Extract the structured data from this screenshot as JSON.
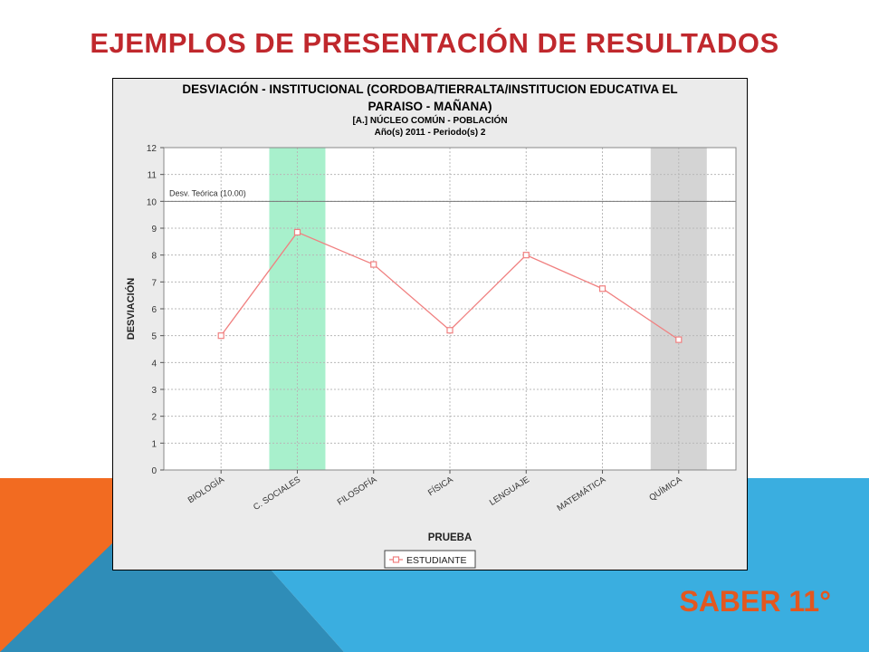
{
  "slide": {
    "title": "EJEMPLOS DE PRESENTACIÓN DE RESULTADOS",
    "footer": "SABER 11°"
  },
  "colors": {
    "title": "#c0282d",
    "footer": "#e3571f",
    "orange_block": "#f26b21",
    "blue_block": "#3aaee0",
    "teal_block": "#2f8db8",
    "series": "#f08080",
    "highlight_green": "#a8f0cc",
    "highlight_gray": "#d4d4d4"
  },
  "chart_data": {
    "type": "line",
    "title_lines": [
      "DESVIACIÓN - INSTITUCIONAL (CORDOBA/TIERRALTA/INSTITUCION EDUCATIVA EL",
      "PARAISO - MAÑANA)"
    ],
    "subtitle_lines": [
      "[A.] NÚCLEO COMÚN - POBLACIÓN",
      "Año(s) 2011  -  Periodo(s) 2"
    ],
    "xlabel": "PRUEBA",
    "ylabel": "DESVIACIÓN",
    "categories": [
      "BIOLOGÍA",
      "C. SOCIALES",
      "FILOSOFÍA",
      "FÍSICA",
      "LENGUAJE",
      "MATEMÁTICA",
      "QUÍMICA"
    ],
    "series": [
      {
        "name": "ESTUDIANTE",
        "values": [
          5.0,
          8.85,
          7.65,
          5.2,
          8.0,
          6.75,
          4.85
        ],
        "color": "#f08080",
        "marker": "square"
      }
    ],
    "ylim": [
      0,
      12
    ],
    "yticks": [
      0,
      1,
      2,
      3,
      4,
      5,
      6,
      7,
      8,
      9,
      10,
      11,
      12
    ],
    "reference_line": {
      "value": 10,
      "label": "Desv. Teórica (10.00)"
    },
    "highlight_bands": [
      {
        "category": "C. SOCIALES",
        "color": "#a8f0cc"
      },
      {
        "category": "QUÍMICA",
        "color": "#d4d4d4"
      }
    ],
    "grid": true,
    "legend": "bottom-center"
  }
}
